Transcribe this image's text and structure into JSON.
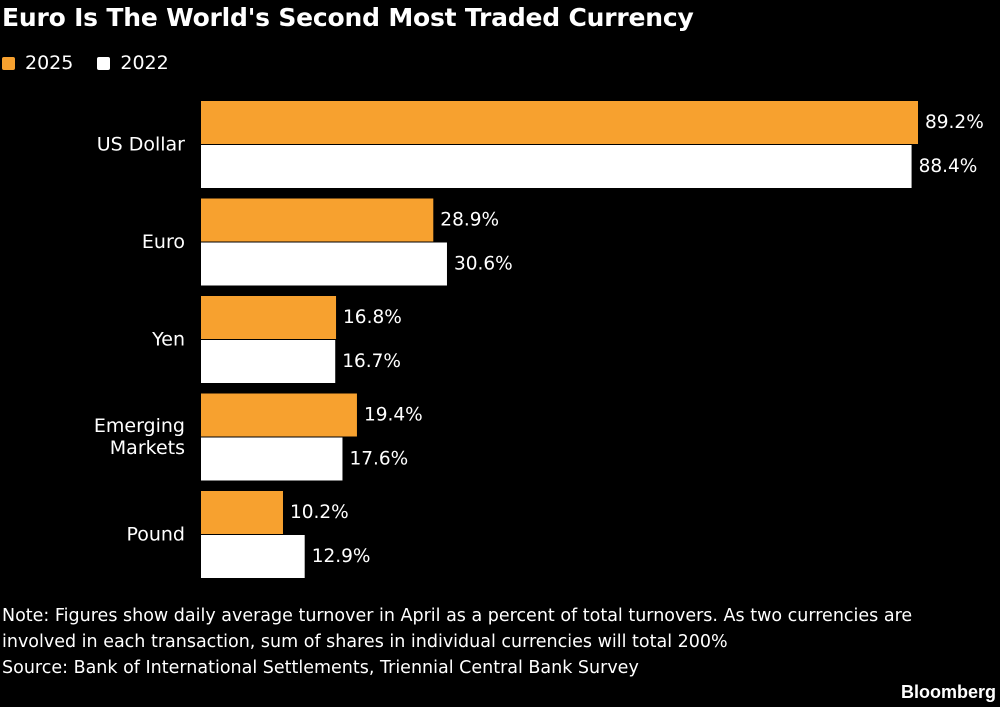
{
  "colors": {
    "background": "#000000",
    "series_2025": "#f7a12f",
    "series_2022": "#ffffff",
    "text": "#ffffff"
  },
  "chart_data": {
    "type": "bar",
    "orientation": "horizontal",
    "title": "Euro Is The World's Second Most Traded Currency",
    "categories": [
      "US Dollar",
      "Euro",
      "Yen",
      "Emerging Markets",
      "Pound"
    ],
    "category_lines": [
      [
        "US Dollar"
      ],
      [
        "Euro"
      ],
      [
        "Yen"
      ],
      [
        "Emerging",
        "Markets"
      ],
      [
        "Pound"
      ]
    ],
    "series": [
      {
        "name": "2025",
        "color": "#f7a12f",
        "values": [
          89.2,
          28.9,
          16.8,
          19.4,
          10.2
        ],
        "labels": [
          "89.2%",
          "28.9%",
          "16.8%",
          "19.4%",
          "10.2%"
        ]
      },
      {
        "name": "2022",
        "color": "#ffffff",
        "values": [
          88.4,
          30.6,
          16.7,
          17.6,
          12.9
        ],
        "labels": [
          "88.4%",
          "30.6%",
          "16.7%",
          "17.6%",
          "12.9%"
        ]
      }
    ],
    "value_unit": "%",
    "xlim": [
      0,
      89.2
    ],
    "legend_position": "top-left",
    "grid": false
  },
  "note": {
    "line1": "Note: Figures show daily average turnover in April as a percent of total turnovers. As two currencies are",
    "line2": "involved in each transaction, sum of shares in individual currencies will total 200%",
    "source": "Source: Bank of International Settlements, Triennial Central Bank Survey"
  },
  "brand": "Bloomberg"
}
